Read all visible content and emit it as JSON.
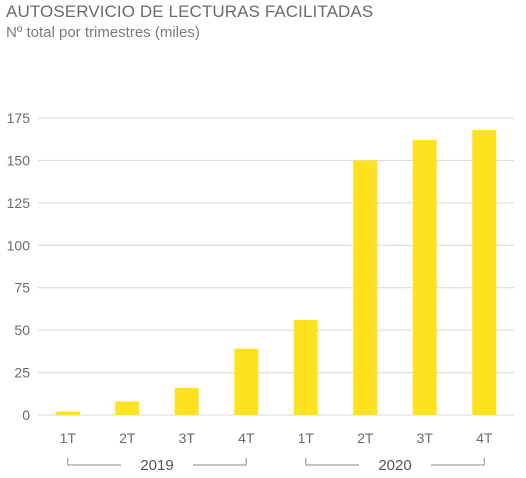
{
  "chart_data": {
    "type": "bar",
    "title": "AUTOSERVICIO DE LECTURAS FACILITADAS",
    "subtitle": "Nº total por trimestres (miles)",
    "categories": [
      "1T",
      "2T",
      "3T",
      "4T",
      "1T",
      "2T",
      "3T",
      "4T"
    ],
    "groups": [
      {
        "label": "2019",
        "categories": [
          0,
          3
        ]
      },
      {
        "label": "2020",
        "categories": [
          4,
          7
        ]
      }
    ],
    "values": [
      2,
      8,
      16,
      39,
      56,
      150,
      162,
      168
    ],
    "ylim": [
      0,
      175
    ],
    "yticks": [
      0,
      25,
      50,
      75,
      100,
      125,
      150,
      175
    ],
    "grid": true,
    "bar_color": "#FFE21F",
    "grid_color": "#d9d9d9",
    "text_color": "#6b6b6b"
  }
}
